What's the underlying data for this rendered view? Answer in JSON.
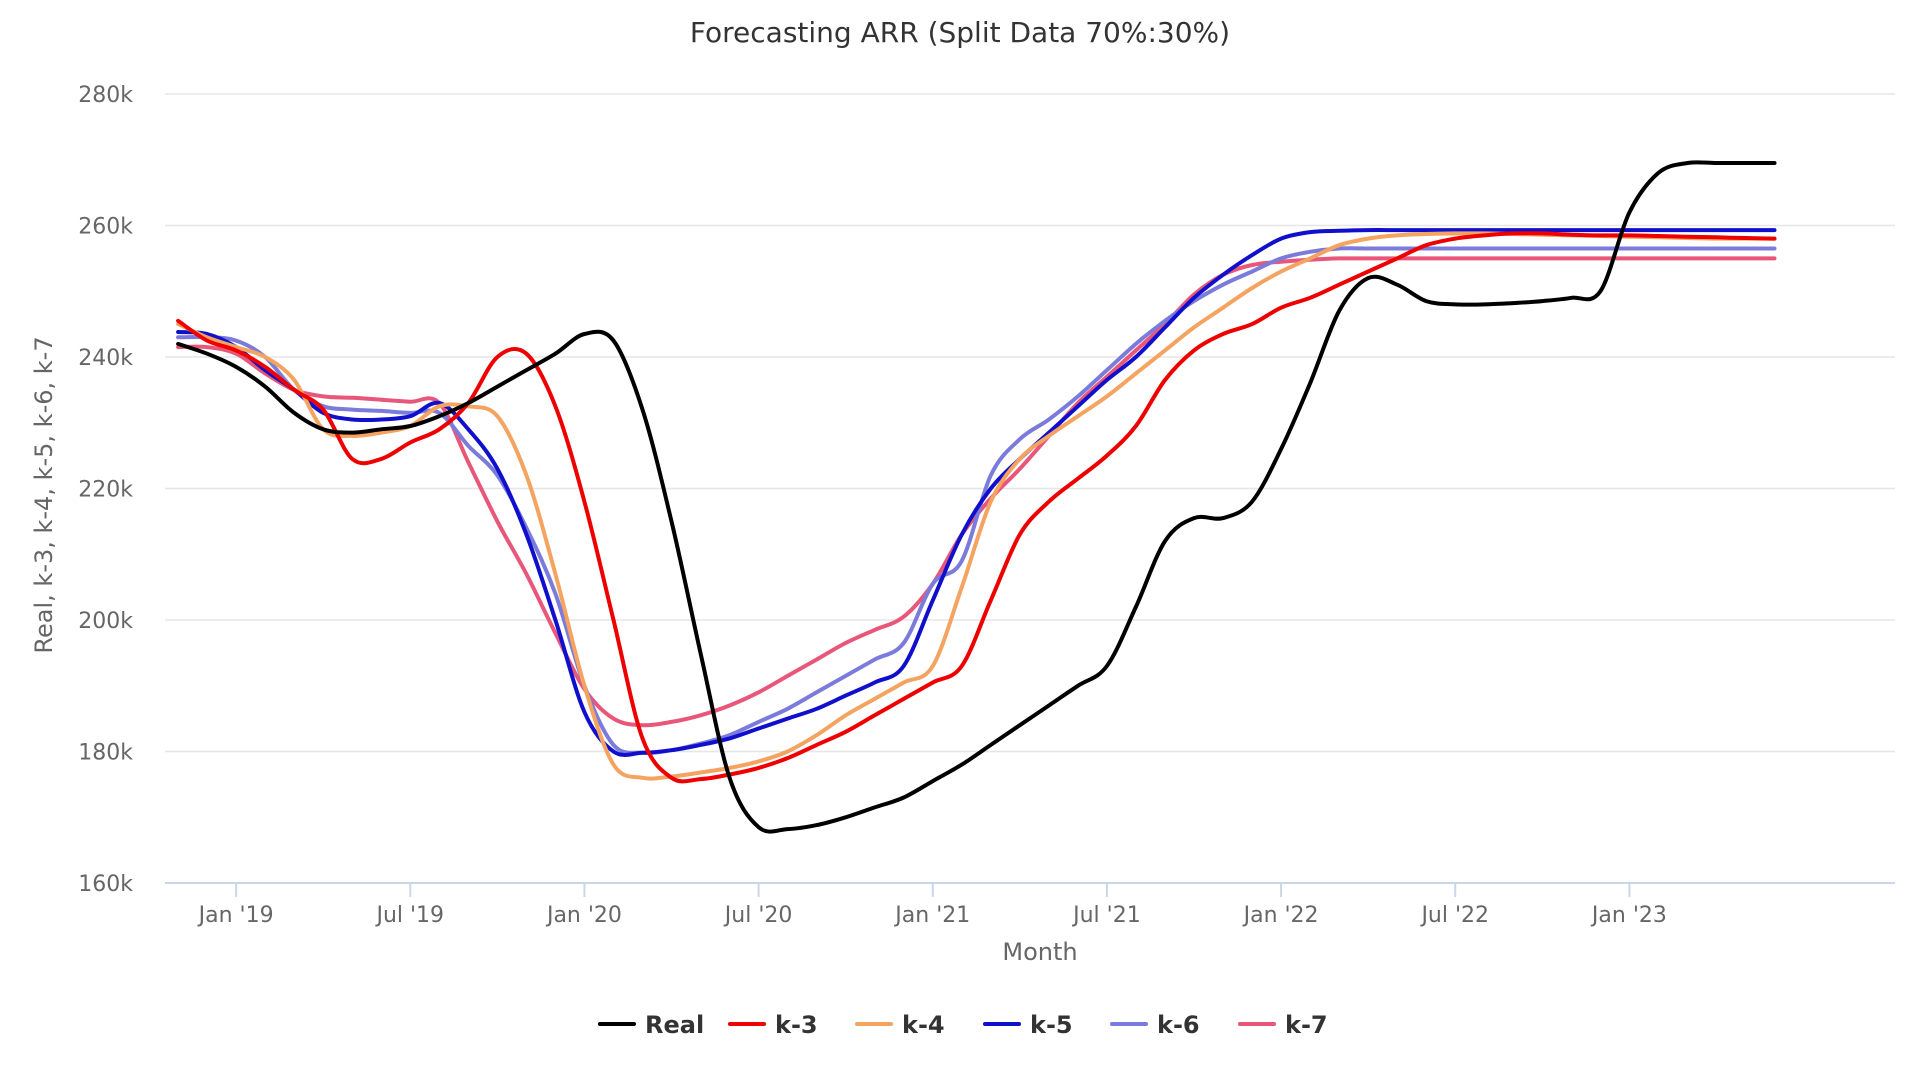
{
  "chart_data": {
    "type": "line",
    "title": "Forecasting ARR (Split Data 70%:30%)",
    "xlabel": "Month",
    "ylabel": "Real, k-3, k-4, k-5, k-6, k-7",
    "ylim": [
      160000,
      280000
    ],
    "yticks": [
      160000,
      180000,
      200000,
      220000,
      240000,
      260000,
      280000
    ],
    "ytick_labels": [
      "160k",
      "180k",
      "200k",
      "220k",
      "240k",
      "260k",
      "280k"
    ],
    "xlim": [
      "2018-11",
      "2023-10"
    ],
    "xticks": [
      "2019-01",
      "2019-07",
      "2020-01",
      "2020-07",
      "2021-01",
      "2021-07",
      "2022-01",
      "2022-07",
      "2023-01"
    ],
    "xtick_labels": [
      "Jan '19",
      "Jul '19",
      "Jan '20",
      "Jul '20",
      "Jan '21",
      "Jul '21",
      "Jan '22",
      "Jul '22",
      "Jan '23"
    ],
    "grid": true,
    "legend_position": "bottom",
    "x": [
      "2018-11",
      "2018-12",
      "2019-01",
      "2019-02",
      "2019-03",
      "2019-04",
      "2019-05",
      "2019-06",
      "2019-07",
      "2019-08",
      "2019-09",
      "2019-10",
      "2019-11",
      "2019-12",
      "2020-01",
      "2020-02",
      "2020-03",
      "2020-04",
      "2020-05",
      "2020-06",
      "2020-07",
      "2020-08",
      "2020-09",
      "2020-10",
      "2020-11",
      "2020-12",
      "2021-01",
      "2021-02",
      "2021-03",
      "2021-04",
      "2021-05",
      "2021-06",
      "2021-07",
      "2021-08",
      "2021-09",
      "2021-10",
      "2021-11",
      "2021-12",
      "2022-01",
      "2022-02",
      "2022-03",
      "2022-04",
      "2022-05",
      "2022-06",
      "2022-07",
      "2022-08",
      "2022-09",
      "2022-10",
      "2022-11",
      "2022-12",
      "2023-01",
      "2023-02",
      "2023-03",
      "2023-04",
      "2023-05",
      "2023-06"
    ],
    "series": [
      {
        "name": "Real",
        "color": "#000000",
        "values": [
          242000,
          240500,
          238500,
          235500,
          231500,
          229000,
          228500,
          229000,
          229500,
          231000,
          233000,
          235500,
          238000,
          240500,
          243500,
          242500,
          232000,
          215000,
          195000,
          176000,
          168500,
          168200,
          168800,
          170000,
          171500,
          173000,
          175500,
          178000,
          181000,
          184000,
          187000,
          190000,
          193000,
          202000,
          212000,
          215500,
          215500,
          218000,
          226000,
          236000,
          247000,
          252000,
          251000,
          248500,
          248000,
          248000,
          248200,
          248500,
          249000,
          250000,
          262000,
          268000,
          269500,
          269500,
          269500,
          269500
        ]
      },
      {
        "name": "k-3",
        "color": "#ee0000",
        "values": [
          245500,
          242500,
          241000,
          238500,
          235000,
          232000,
          224500,
          224500,
          227000,
          229000,
          233000,
          240000,
          240500,
          232500,
          218000,
          200000,
          182000,
          176000,
          175800,
          176500,
          177500,
          179000,
          181000,
          183000,
          185500,
          188000,
          190500,
          193000,
          203000,
          213000,
          218000,
          221500,
          225000,
          229500,
          236500,
          241000,
          243500,
          245000,
          247500,
          249000,
          251000,
          253000,
          255000,
          257000,
          258000,
          258500,
          258800,
          258800,
          258600,
          258500,
          258500,
          258400,
          258300,
          258200,
          258100,
          258000
        ]
      },
      {
        "name": "k-4",
        "color": "#f4a460",
        "values": [
          245000,
          243000,
          241500,
          240000,
          236500,
          229000,
          228000,
          228500,
          229500,
          232500,
          232500,
          231000,
          222000,
          207000,
          190000,
          178000,
          176000,
          176200,
          176800,
          177500,
          178500,
          180000,
          182500,
          185500,
          188000,
          190500,
          193000,
          205000,
          218000,
          224500,
          228000,
          231000,
          234000,
          237500,
          241000,
          244500,
          247500,
          250500,
          253000,
          255000,
          257000,
          258000,
          258500,
          258700,
          258800,
          258800,
          258700,
          258600,
          258500,
          258400,
          258300,
          258200,
          258100,
          258000,
          258000,
          258000
        ]
      },
      {
        "name": "k-5",
        "color": "#1010cc",
        "values": [
          243800,
          243500,
          241500,
          238000,
          235000,
          231500,
          230500,
          230500,
          231000,
          233000,
          229000,
          223000,
          213000,
          200000,
          186000,
          180000,
          179800,
          180200,
          181000,
          182000,
          183500,
          185000,
          186500,
          188500,
          190500,
          193000,
          203000,
          213000,
          220000,
          224500,
          228500,
          232500,
          236500,
          240000,
          244500,
          249000,
          252500,
          255500,
          258000,
          259000,
          259200,
          259300,
          259300,
          259300,
          259300,
          259300,
          259300,
          259300,
          259300,
          259300,
          259300,
          259300,
          259300,
          259300,
          259300,
          259300
        ]
      },
      {
        "name": "k-6",
        "color": "#7b7bdc",
        "values": [
          243000,
          243000,
          242500,
          240000,
          235000,
          232500,
          232000,
          231800,
          231500,
          231500,
          226500,
          222000,
          214000,
          204000,
          190000,
          181000,
          179800,
          180200,
          181200,
          182500,
          184500,
          186500,
          189000,
          191500,
          194000,
          196500,
          205500,
          209000,
          222000,
          227500,
          230500,
          234000,
          238000,
          242000,
          245500,
          248500,
          251000,
          253000,
          255000,
          256000,
          256500,
          256500,
          256500,
          256500,
          256500,
          256500,
          256500,
          256500,
          256500,
          256500,
          256500,
          256500,
          256500,
          256500,
          256500,
          256500
        ]
      },
      {
        "name": "k-7",
        "color": "#e8577a",
        "values": [
          241500,
          241500,
          240500,
          237500,
          235000,
          234000,
          233800,
          233500,
          233200,
          233000,
          224000,
          215000,
          207000,
          198000,
          189500,
          185000,
          184000,
          184500,
          185500,
          187000,
          189000,
          191500,
          194000,
          196500,
          198500,
          200500,
          205500,
          213000,
          218500,
          223000,
          228000,
          233000,
          237000,
          241000,
          245000,
          249500,
          252500,
          254000,
          254500,
          254800,
          255000,
          255000,
          255000,
          255000,
          255000,
          255000,
          255000,
          255000,
          255000,
          255000,
          255000,
          255000,
          255000,
          255000,
          255000,
          255000
        ]
      }
    ]
  }
}
